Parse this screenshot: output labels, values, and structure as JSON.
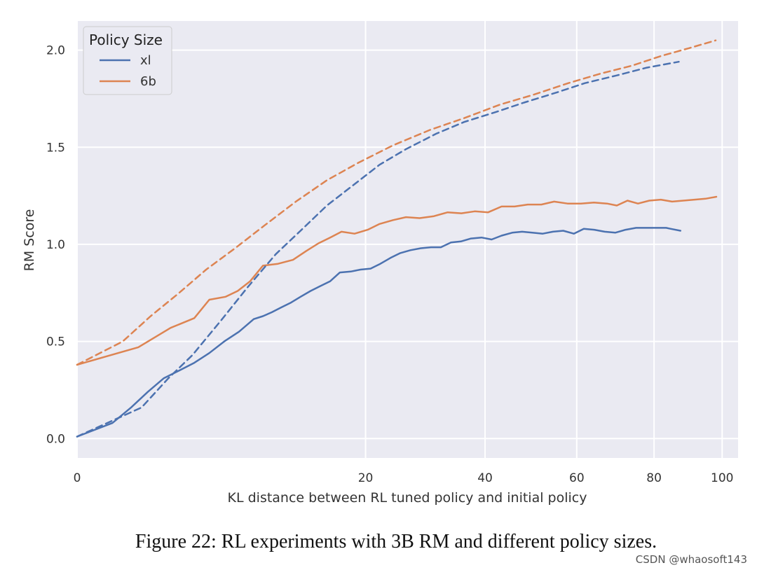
{
  "caption": "Figure 22: RL experiments with 3B RM and different policy sizes.",
  "watermark": "CSDN @whaosoft143",
  "chart_data": {
    "type": "line",
    "xlabel": "KL distance between RL tuned policy and initial policy",
    "ylabel": "RM Score",
    "x_scale": "sqrt",
    "xlim": [
      0,
      105
    ],
    "ylim": [
      -0.1,
      2.15
    ],
    "x_ticks": [
      0,
      20,
      40,
      60,
      80,
      100
    ],
    "y_ticks": [
      0.0,
      0.5,
      1.0,
      1.5,
      2.0
    ],
    "y_tick_labels": [
      "0.0",
      "0.5",
      "1.0",
      "1.5",
      "2.0"
    ],
    "grid": true,
    "background": "#eaeaf2",
    "legend": {
      "title": "Policy Size",
      "placement": "top-left"
    },
    "series": [
      {
        "name": "xl",
        "color": "#4c72b0",
        "style": "solid",
        "x": [
          0,
          0.3,
          0.7,
          1.2,
          1.8,
          2.5,
          3.3,
          4.2,
          5.2,
          6.3,
          7.5,
          8.3,
          9.1,
          10.0,
          11.0,
          12.0,
          13.1,
          14.2,
          15.4,
          16.6,
          18.0,
          19.3,
          20.7,
          22.1,
          23.6,
          25.1,
          26.7,
          28.4,
          30.1,
          31.8,
          33.6,
          35.4,
          37.3,
          39.3,
          41.3,
          43.3,
          45.5,
          47.6,
          49.8,
          52.1,
          54.4,
          56.8,
          59.3,
          61.7,
          64.3,
          66.9,
          69.6,
          72.3,
          75.1,
          77.9,
          80.8,
          83.4,
          84.6,
          87.5
        ],
        "y": [
          0.01,
          0.08,
          0.16,
          0.24,
          0.31,
          0.35,
          0.39,
          0.44,
          0.5,
          0.55,
          0.615,
          0.63,
          0.65,
          0.675,
          0.7,
          0.73,
          0.76,
          0.785,
          0.81,
          0.855,
          0.86,
          0.87,
          0.875,
          0.9,
          0.93,
          0.955,
          0.97,
          0.98,
          0.985,
          0.985,
          1.01,
          1.015,
          1.03,
          1.035,
          1.025,
          1.045,
          1.06,
          1.065,
          1.06,
          1.055,
          1.065,
          1.07,
          1.055,
          1.08,
          1.075,
          1.065,
          1.06,
          1.075,
          1.085,
          1.085,
          1.085,
          1.085,
          1.08,
          1.07
        ]
      },
      {
        "name": "6b",
        "color": "#dd8452",
        "style": "solid",
        "x": [
          0,
          0.9,
          2.1,
          3.3,
          4.2,
          5.3,
          6.2,
          7.2,
          8.3,
          9.7,
          11.2,
          12.6,
          14.0,
          15.4,
          16.8,
          18.5,
          20.3,
          22.0,
          24.0,
          26.0,
          28.2,
          30.6,
          33.0,
          35.5,
          38.0,
          40.6,
          43.3,
          46.0,
          48.8,
          51.8,
          54.7,
          57.8,
          61.0,
          64.2,
          67.5,
          70.0,
          72.8,
          75.6,
          78.7,
          81.9,
          85.1,
          88.3,
          91.6,
          94.9,
          98.2
        ],
        "y": [
          0.38,
          0.47,
          0.57,
          0.62,
          0.715,
          0.73,
          0.76,
          0.81,
          0.89,
          0.9,
          0.92,
          0.965,
          1.005,
          1.035,
          1.065,
          1.055,
          1.075,
          1.105,
          1.125,
          1.14,
          1.135,
          1.145,
          1.165,
          1.16,
          1.17,
          1.165,
          1.195,
          1.195,
          1.205,
          1.205,
          1.22,
          1.21,
          1.21,
          1.215,
          1.21,
          1.2,
          1.225,
          1.21,
          1.225,
          1.23,
          1.22,
          1.225,
          1.23,
          1.235,
          1.245
        ]
      },
      {
        "name": "",
        "color": "#4c72b0",
        "style": "dashed",
        "x": [
          0,
          1,
          2,
          3.2,
          5,
          7,
          9.5,
          12,
          15,
          18.5,
          22,
          26,
          31,
          36,
          42,
          48,
          55,
          62,
          70,
          78,
          87
        ],
        "y": [
          0.01,
          0.16,
          0.31,
          0.43,
          0.61,
          0.78,
          0.95,
          1.07,
          1.2,
          1.31,
          1.41,
          1.49,
          1.57,
          1.63,
          1.68,
          1.73,
          1.78,
          1.83,
          1.87,
          1.91,
          1.94
        ]
      },
      {
        "name": "",
        "color": "#dd8452",
        "style": "dashed",
        "x": [
          0,
          0.5,
          1.3,
          2.5,
          4,
          6,
          8.5,
          11.5,
          15,
          19,
          24,
          30,
          36,
          43,
          50,
          58,
          66,
          74,
          82,
          90,
          98
        ],
        "y": [
          0.38,
          0.5,
          0.63,
          0.75,
          0.87,
          0.98,
          1.1,
          1.22,
          1.33,
          1.42,
          1.51,
          1.59,
          1.65,
          1.72,
          1.77,
          1.83,
          1.88,
          1.92,
          1.97,
          2.01,
          2.05
        ]
      }
    ]
  }
}
